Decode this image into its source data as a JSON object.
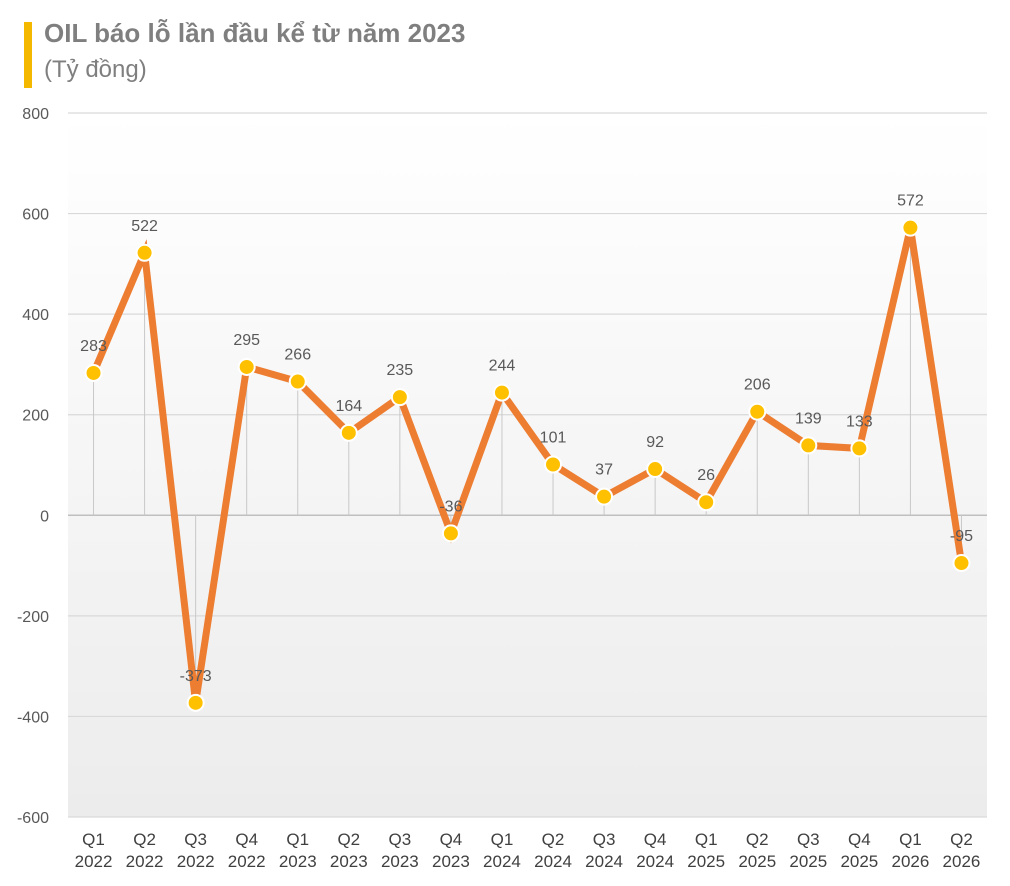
{
  "chart_data": {
    "type": "line",
    "title": "OIL báo lỗ lần đầu kể từ năm 2023",
    "subtitle": "(Tỷ đồng)",
    "xlabel": "",
    "ylabel": "",
    "ylim": [
      -600,
      800
    ],
    "yticks": [
      800,
      600,
      400,
      200,
      0,
      -200,
      -400,
      -600
    ],
    "grid": true,
    "legend": "none",
    "categories": [
      [
        "Q1",
        "2022"
      ],
      [
        "Q2",
        "2022"
      ],
      [
        "Q3",
        "2022"
      ],
      [
        "Q4",
        "2022"
      ],
      [
        "Q1",
        "2023"
      ],
      [
        "Q2",
        "2023"
      ],
      [
        "Q3",
        "2023"
      ],
      [
        "Q4",
        "2023"
      ],
      [
        "Q1",
        "2024"
      ],
      [
        "Q2",
        "2024"
      ],
      [
        "Q3",
        "2024"
      ],
      [
        "Q4",
        "2024"
      ],
      [
        "Q1",
        "2025"
      ],
      [
        "Q2",
        "2025"
      ],
      [
        "Q3",
        "2025"
      ],
      [
        "Q4",
        "2025"
      ],
      [
        "Q1",
        "2026"
      ],
      [
        "Q2",
        "2026"
      ]
    ],
    "series": [
      {
        "values": [
          283,
          522,
          -373,
          295,
          266,
          164,
          235,
          -36,
          244,
          101,
          37,
          92,
          26,
          206,
          139,
          133,
          572,
          -95
        ],
        "line_color": "#ed7d31",
        "marker_color": "#ffc000"
      }
    ],
    "accent_color": "#f5b800"
  }
}
